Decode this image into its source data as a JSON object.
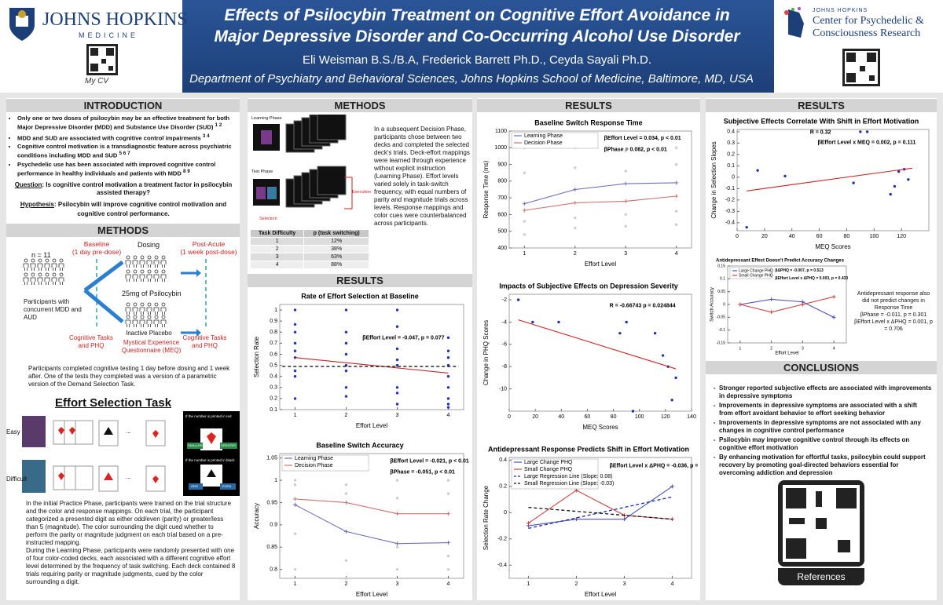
{
  "poster": {
    "header": {
      "title_lines": [
        "Effects of Psilocybin Treatment on Cognitive Effort Avoidance in",
        "Major Depressive Disorder and Co-Occurring Alcohol Use Disorder"
      ],
      "authors": "Eli Weisman B.S./B.A, Frederick Barrett Ph.D., Ceyda Sayali Ph.D.",
      "department": "Department of Psychiatry and Behavioral Sciences, Johns Hopkins School of Medicine, Baltimore, MD, USA",
      "left_logo": [
        "JOHNS HOPKINS",
        "MEDICINE"
      ],
      "cv_label": "My CV",
      "right_logo": [
        "JOHNS HOPKINS",
        "Center for Psychedelic &",
        "Consciousness Research"
      ]
    },
    "intro": {
      "heading": "INTRODUCTION",
      "bullets": [
        {
          "text": "Only one or two doses of psilocybin may be an effective treatment for both Major Depressive Disorder (MDD) and Substance Use Disorder (SUD)",
          "ref": "1 2"
        },
        {
          "text": "MDD and SUD are associated with cognitive control impairments",
          "ref": "3 4"
        },
        {
          "text": "Cognitive control motivation is a transdiagnostic feature across psychiatric conditions including MDD and SUD",
          "ref": "5 6 7"
        },
        {
          "text": "Psychedelic use has been associated with improved cognitive control performance in healthy individuals and patients with MDD",
          "ref": "8 9"
        }
      ],
      "question_label": "Question",
      "question": ": Is cognitive control motivation a treatment factor in psilocybin assisted therapy?",
      "hypothesis_label": "Hypothesis",
      "hypothesis": ": Psilocybin will improve cognitive control motivation and cognitive control performance."
    },
    "methods1": {
      "heading": "METHODS",
      "n": "n = 11",
      "participants": "Participants with concurrent MDD and AUD",
      "baseline": [
        "Baseline",
        "(1 day pre-dose)"
      ],
      "dosing": "Dosing",
      "dose": "25mg of Psilocybin",
      "placebo": "Inactive Placebo",
      "post": [
        "Post-Acute",
        "(1 week post-dose)"
      ],
      "tasks_pre": "Cognitive Tasks and PHQ",
      "meq": "Mystical Experience Questionnaire (MEQ)",
      "tasks_post": "Cognitive Tasks and PHQ",
      "paragraph": "Participants completed cognitive testing 1 day before dosing and 1 week after. One of the tests they completed was a version of a parametric version of the Demand Selection Task."
    },
    "task": {
      "heading": "Effort Selection Task",
      "easy": "Easy",
      "difficult": "Difficult",
      "red_rule": "If the number is printed in red",
      "smaller": "SMALLER",
      "greater": "GREATER",
      "black_rule": "If the number is printed in black",
      "odd": "ODD",
      "even": "EVEN",
      "paragraphs": [
        "In the initial Practice Phase, participants were trained on the trial structure and the color and response mappings. On each trial, the participant categorized a presented digit as either odd/even (parity) or greater/less than 5 (magnitude). The color surrounding the digit cued whether to perform the parity or magnitude judgment on each trial based on a pre-instructed mapping.",
        "During the Learning Phase, participants were randomly presented with one of four color-coded decks, each associated with a different cognitive effort level determined by the frequency of task switching. Each deck contained 8 trials requiring parity or magnitude judgments, cued by the color surrounding a digit."
      ]
    },
    "methods2": {
      "heading": "METHODS",
      "learning": "Learning Phase",
      "test": "Test Phase",
      "execution": "Execution",
      "selection": "Selection",
      "paragraph": "In a subsequent Decision Phase, participants chose between two decks and completed the selected deck's trials. Deck-effort mappings were learned through experience without explicit instruction (Learning Phase). Effort levels varied solely in task-switch frequency, with equal numbers of parity and magnitude trials across levels. Response mappings and color cues were counterbalanced across participants.",
      "table": {
        "header": [
          "Task Difficulty",
          "p (task switching)"
        ],
        "rows": [
          [
            "1",
            "12%"
          ],
          [
            "2",
            "38%"
          ],
          [
            "3",
            "63%"
          ],
          [
            "4",
            "88%"
          ]
        ]
      }
    },
    "results_headings": [
      "RESULTS",
      "RESULTS",
      "RESULTS"
    ],
    "side_note": {
      "text": "Antidepressant response also did not predict changes in Response Time",
      "lines": [
        "βPhase = -0.011, p = 0.301",
        "βEffort Level x ΔPHQ = 0.001, p = 0.706"
      ]
    },
    "conclusions": {
      "heading": "CONCLUSIONS",
      "bullets": [
        "Stronger reported subjective effects are associated with improvements in depressive symptoms",
        "Improvements in depressive symptoms are associated with a shift from effort avoidant behavior to effort seeking behavior",
        "Improvements in depressive symptoms are not associated with any changes in cognitive control performance",
        "Psilocybin may improve cognitive control through its effects on cognitive effort motivation",
        "By enhancing motivation for effortful tasks, psilocybin could support recovery by promoting goal-directed behaviors essential for overcoming addiction and depression"
      ]
    },
    "references": "References"
  },
  "chart_data": [
    {
      "type": "scatter",
      "title": "Rate of Effort Selection at Baseline",
      "xlabel": "Effort Level",
      "ylabel": "Selection Rate",
      "xlim": [
        0.7,
        4.3
      ],
      "xticks": [
        1,
        2,
        3,
        4
      ],
      "ylim": [
        0.1,
        1.05
      ],
      "yticks": [
        0.1,
        0.2,
        0.3,
        0.4,
        0.5,
        0.6,
        0.7,
        0.8,
        0.9,
        1
      ],
      "annotations": [
        "βEffort Level = -0.047, p = 0.077"
      ],
      "series": [
        {
          "style": "points",
          "color": "#2233bb",
          "x": [
            1,
            1,
            1,
            1,
            1,
            1,
            1,
            1,
            1,
            2,
            2,
            2,
            2,
            2,
            2,
            2,
            2,
            3,
            3,
            3,
            3,
            3,
            3,
            3,
            3,
            4,
            4,
            4,
            4,
            4,
            4,
            4,
            4,
            4
          ],
          "values": [
            1,
            0.87,
            0.8,
            0.7,
            0.63,
            0.57,
            0.45,
            0.4,
            0.2,
            1,
            0.8,
            0.7,
            0.6,
            0.5,
            0.45,
            0.3,
            0.22,
            1,
            0.85,
            0.65,
            0.55,
            0.5,
            0.3,
            0.25,
            0.15,
            0.75,
            0.63,
            0.57,
            0.5,
            0.4,
            0.3,
            0.2,
            0.15,
            0.12
          ]
        },
        {
          "style": "line",
          "color": "#cc2222",
          "x": [
            1,
            4
          ],
          "values": [
            0.57,
            0.43
          ]
        },
        {
          "style": "dashed",
          "color": "#000000",
          "x": [
            0.75,
            4.2
          ],
          "values": [
            0.49,
            0.49
          ]
        }
      ]
    },
    {
      "type": "line",
      "title": "Baseline Switch Accuracy",
      "xlabel": "Effort Level",
      "ylabel": "Accuracy",
      "legend": "upper left",
      "xlim": [
        0.7,
        4.3
      ],
      "xticks": [
        1,
        2,
        3,
        4
      ],
      "ylim": [
        0.78,
        1.06
      ],
      "yticks": [
        0.8,
        0.85,
        0.9,
        0.95,
        1,
        1.05
      ],
      "annotations": [
        "βEffort Level = -0.021, p < 0.01",
        "βPhase = -0.051, p < 0.01"
      ],
      "series": [
        {
          "style": "points",
          "color": "#cccccc",
          "x": [
            1,
            1,
            1,
            1,
            2,
            2,
            2,
            2,
            3,
            3,
            3,
            3,
            4,
            4,
            4,
            4
          ],
          "values": [
            1,
            0.99,
            0.88,
            0.8,
            0.99,
            0.97,
            0.82,
            0.78,
            1,
            0.96,
            0.85,
            0.8,
            1,
            0.97,
            0.83,
            0.8
          ]
        },
        {
          "name": "Learning Phase",
          "style": "markers-line",
          "color": "#6b6fbf",
          "x": [
            1,
            2,
            3,
            4
          ],
          "values": [
            0.945,
            0.885,
            0.858,
            0.86
          ]
        },
        {
          "name": "Decision Phase",
          "style": "markers-line",
          "color": "#d07070",
          "x": [
            1,
            2,
            3,
            4
          ],
          "values": [
            0.958,
            0.95,
            0.925,
            0.925
          ]
        }
      ]
    },
    {
      "type": "line",
      "title": "Baseline Switch Response Time",
      "xlabel": "Effort Level",
      "ylabel": "Response Time (ms)",
      "legend": "upper left",
      "xlim": [
        0.7,
        4.3
      ],
      "xticks": [
        1,
        2,
        3,
        4
      ],
      "ylim": [
        400,
        1100
      ],
      "yticks": [
        400,
        500,
        600,
        700,
        800,
        900,
        1000,
        1100
      ],
      "annotations": [
        "βEffort Level = 0.034, p < 0.01",
        "βPhase = 0.082, p < 0.01"
      ],
      "series": [
        {
          "style": "points",
          "color": "#cccccc",
          "x": [
            1,
            1,
            1,
            1,
            2,
            2,
            2,
            2,
            3,
            3,
            3,
            3,
            4,
            4,
            4,
            4
          ],
          "values": [
            1000,
            850,
            560,
            480,
            1000,
            880,
            580,
            520,
            980,
            860,
            600,
            530,
            1000,
            900,
            620,
            540
          ]
        },
        {
          "name": "Learning Phase",
          "style": "markers-line",
          "color": "#6b6fbf",
          "x": [
            1,
            2,
            3,
            4
          ],
          "values": [
            665,
            750,
            785,
            790
          ]
        },
        {
          "name": "Decision Phase",
          "style": "markers-line",
          "color": "#d07070",
          "x": [
            1,
            2,
            3,
            4
          ],
          "values": [
            625,
            670,
            680,
            710
          ]
        }
      ]
    },
    {
      "type": "scatter",
      "title": "Impacts of Subjective Effects on Depression Severity",
      "xlabel": "MEQ Scores",
      "ylabel": "Change in PHQ Scores",
      "xlim": [
        0,
        140
      ],
      "xticks": [
        0,
        20,
        40,
        60,
        80,
        100,
        120,
        140
      ],
      "ylim": [
        -12,
        -1.5
      ],
      "yticks": [
        -10,
        -8,
        -6,
        -4,
        -2
      ],
      "annotations": [
        "R = -0.66743 p = 0.024844"
      ],
      "series": [
        {
          "style": "points",
          "color": "#2233aa",
          "x": [
            7,
            18,
            38,
            85,
            90,
            95,
            112,
            118,
            122,
            125,
            128
          ],
          "values": [
            -2,
            -4,
            -4,
            -5,
            -4,
            -12,
            -5,
            -7,
            -8,
            -11,
            -9
          ]
        },
        {
          "style": "line",
          "color": "#cc2222",
          "x": [
            7,
            128
          ],
          "values": [
            -3.8,
            -8.2
          ]
        }
      ]
    },
    {
      "type": "line",
      "title": "Antidepressant Response Predicts Shift in Effort Motivation",
      "xlabel": "Effort Level",
      "ylabel": "Selection Rate Change",
      "legend": "upper left",
      "xlim": [
        0.6,
        4.4
      ],
      "xticks": [
        1,
        2,
        3,
        4
      ],
      "ylim": [
        -0.5,
        0.42
      ],
      "yticks": [
        -0.4,
        -0.2,
        0,
        0.2,
        0.4
      ],
      "annotations": [
        "βEffort Level x ΔPHQ = -0.036, p = 0.014"
      ],
      "series": [
        {
          "name": "Large Change PHQ",
          "style": "markers-line",
          "color": "#4a4fc0",
          "x": [
            1,
            2,
            3,
            4
          ],
          "values": [
            -0.1,
            -0.05,
            -0.05,
            0.2
          ]
        },
        {
          "name": "Small Change PHQ",
          "style": "markers-line",
          "color": "#cc4444",
          "x": [
            1,
            2,
            3,
            4
          ],
          "values": [
            -0.08,
            0.17,
            -0.02,
            -0.05
          ]
        },
        {
          "name": "Large Regression Line (Slope: 0.08)",
          "style": "dashed",
          "color": "#1c2a9c",
          "x": [
            1,
            4
          ],
          "values": [
            -0.12,
            0.12
          ]
        },
        {
          "name": "Small Regression Line (Slope: -0.03)",
          "style": "dashed",
          "color": "#111111",
          "x": [
            1,
            4
          ],
          "values": [
            0.04,
            -0.05
          ]
        }
      ]
    },
    {
      "type": "scatter",
      "title": "Subjective Effects Correlate With Shift in Effort Motivation",
      "xlabel": "MEQ Scores",
      "ylabel": "Change in Selection Slopes",
      "xlim": [
        0,
        140
      ],
      "xticks": [
        0,
        20,
        40,
        60,
        80,
        100,
        120
      ],
      "ylim": [
        -0.47,
        0.42
      ],
      "yticks": [
        -0.4,
        -0.3,
        -0.2,
        -0.1,
        0,
        0.1,
        0.2,
        0.3,
        0.4
      ],
      "annotations": [
        "R = 0.32",
        "βEffort Level x MEQ = 0.002, p = 0.111"
      ],
      "series": [
        {
          "style": "points",
          "color": "#2233aa",
          "x": [
            7,
            15,
            35,
            85,
            90,
            95,
            112,
            115,
            118,
            122,
            125
          ],
          "values": [
            -0.44,
            0.06,
            0.01,
            -0.05,
            0.4,
            0.4,
            -0.15,
            -0.08,
            0.05,
            0.07,
            -0.02
          ]
        },
        {
          "style": "line",
          "color": "#cc2222",
          "x": [
            7,
            128
          ],
          "values": [
            -0.12,
            0.08
          ]
        }
      ]
    },
    {
      "type": "line",
      "title": "Antidepressant Effect Doesn't Predict Accuracy Changes",
      "xlabel": "Effort Level",
      "ylabel": "Switch Accuracy",
      "legend": "upper left",
      "xlim": [
        0.6,
        4.4
      ],
      "xticks": [
        1,
        2,
        3,
        4
      ],
      "ylim": [
        -0.15,
        0.15
      ],
      "yticks": [
        -0.15,
        -0.1,
        -0.05,
        0,
        0.05,
        0.1,
        0.15
      ],
      "annotations": [
        "βΔPHQ = -0.007, p = 0.513",
        "βEffort Level x ΔPHQ = 0.003, p = 0.433"
      ],
      "series": [
        {
          "name": "Large Change PHQ",
          "style": "markers-line",
          "color": "#4a4fc0",
          "x": [
            1,
            2,
            3,
            4
          ],
          "values": [
            0,
            0.02,
            0.01,
            -0.05
          ]
        },
        {
          "name": "Small Change PHQ",
          "style": "markers-line",
          "color": "#cc4444",
          "x": [
            1,
            2,
            3,
            4
          ],
          "values": [
            0,
            -0.03,
            0,
            0.03
          ]
        }
      ]
    }
  ]
}
